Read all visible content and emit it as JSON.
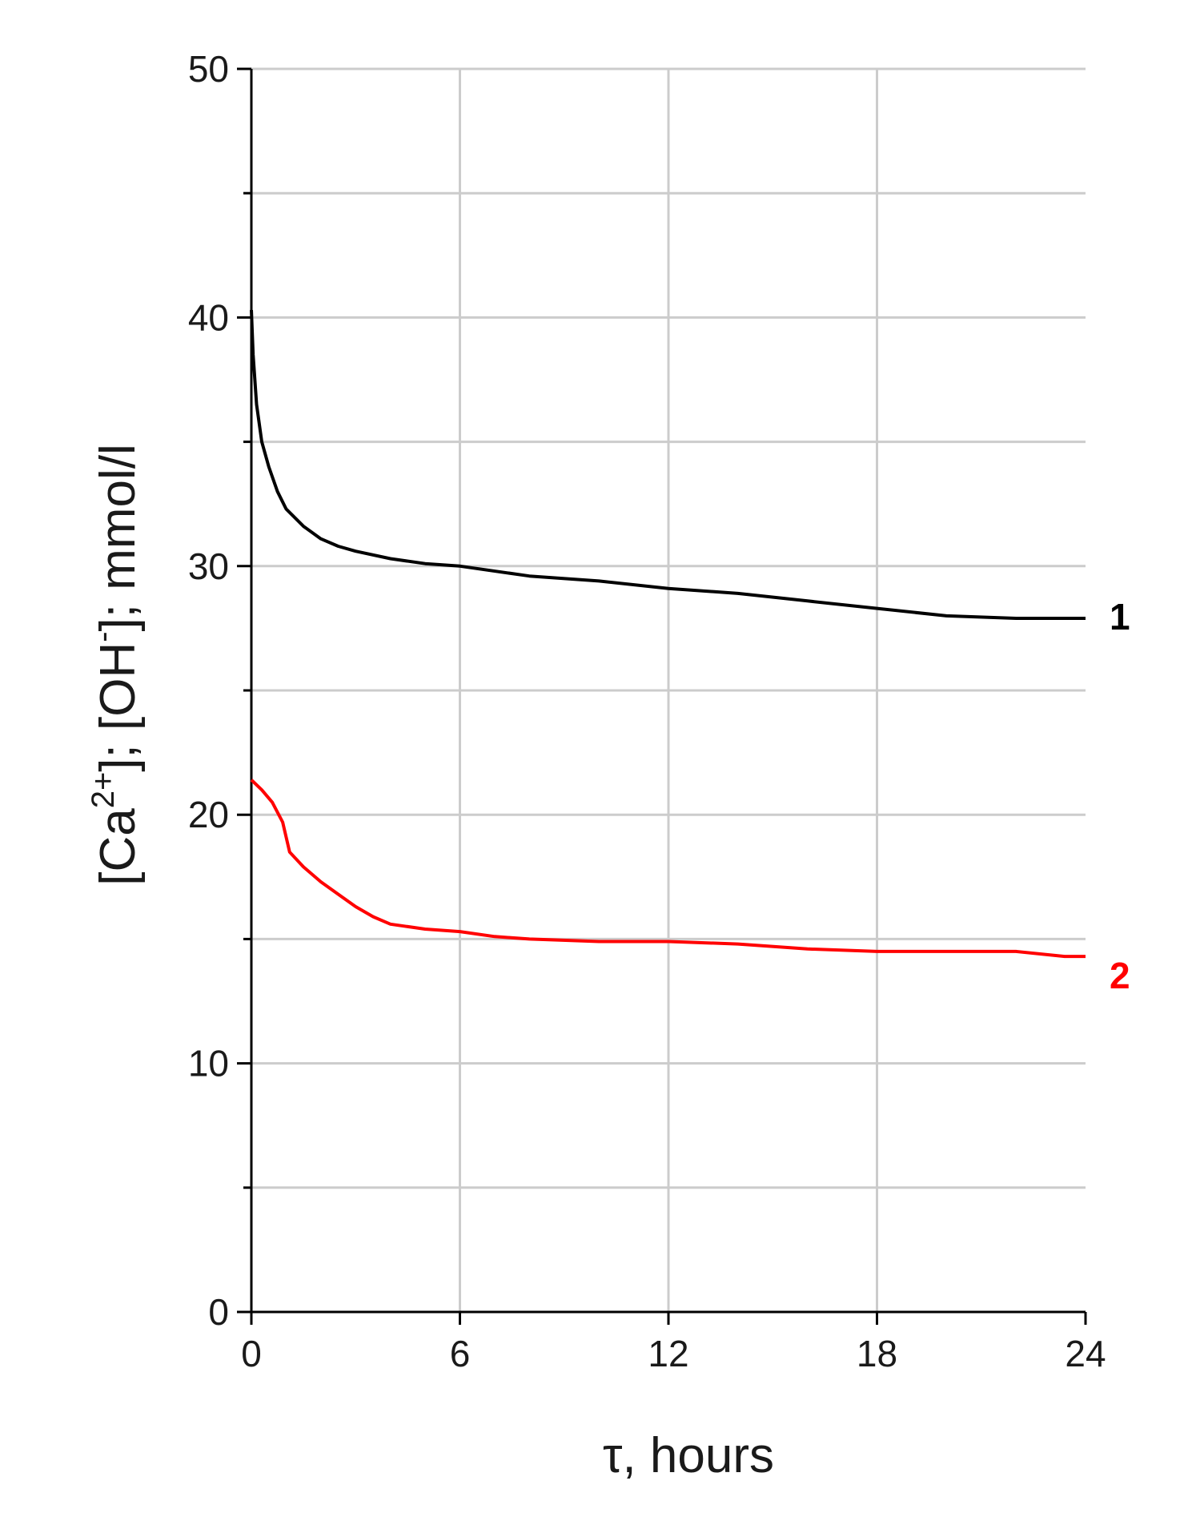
{
  "chart_data": {
    "type": "line",
    "xlabel": "τ, hours",
    "ylabel_parts": [
      "[Ca",
      "2+",
      "]; [OH",
      "-",
      "]; mmol/l"
    ],
    "xlim": [
      0,
      24
    ],
    "ylim": [
      0,
      50
    ],
    "x_ticks": [
      0,
      6,
      12,
      18,
      24
    ],
    "y_ticks": [
      0,
      10,
      20,
      30,
      40,
      50
    ],
    "y_minor_ticks": [
      5,
      15,
      25,
      35,
      45
    ],
    "grid": true,
    "series": [
      {
        "name": "1",
        "color": "#000000",
        "x": [
          0,
          0.05,
          0.15,
          0.3,
          0.5,
          0.75,
          1.0,
          1.5,
          2.0,
          2.5,
          3.0,
          4.0,
          5.0,
          6.0,
          8.0,
          10.0,
          12.0,
          14.0,
          16.0,
          18.0,
          20.0,
          22.0,
          24.0
        ],
        "y": [
          40.3,
          38.5,
          36.5,
          35.0,
          34.0,
          33.0,
          32.3,
          31.6,
          31.1,
          30.8,
          30.6,
          30.3,
          30.1,
          30.0,
          29.6,
          29.4,
          29.1,
          28.9,
          28.6,
          28.3,
          28.0,
          27.9,
          27.9
        ]
      },
      {
        "name": "2",
        "color": "#ff0000",
        "x": [
          0,
          0.3,
          0.6,
          0.9,
          1.1,
          1.5,
          2.0,
          2.5,
          3.0,
          3.5,
          4.0,
          5.0,
          6.0,
          7.0,
          8.0,
          10.0,
          12.0,
          14.0,
          16.0,
          18.0,
          20.0,
          22.0,
          23.4,
          24.0
        ],
        "y": [
          21.4,
          21.0,
          20.5,
          19.7,
          18.5,
          17.9,
          17.3,
          16.8,
          16.3,
          15.9,
          15.6,
          15.4,
          15.3,
          15.1,
          15.0,
          14.9,
          14.9,
          14.8,
          14.6,
          14.5,
          14.5,
          14.5,
          14.3,
          14.3
        ]
      }
    ]
  }
}
